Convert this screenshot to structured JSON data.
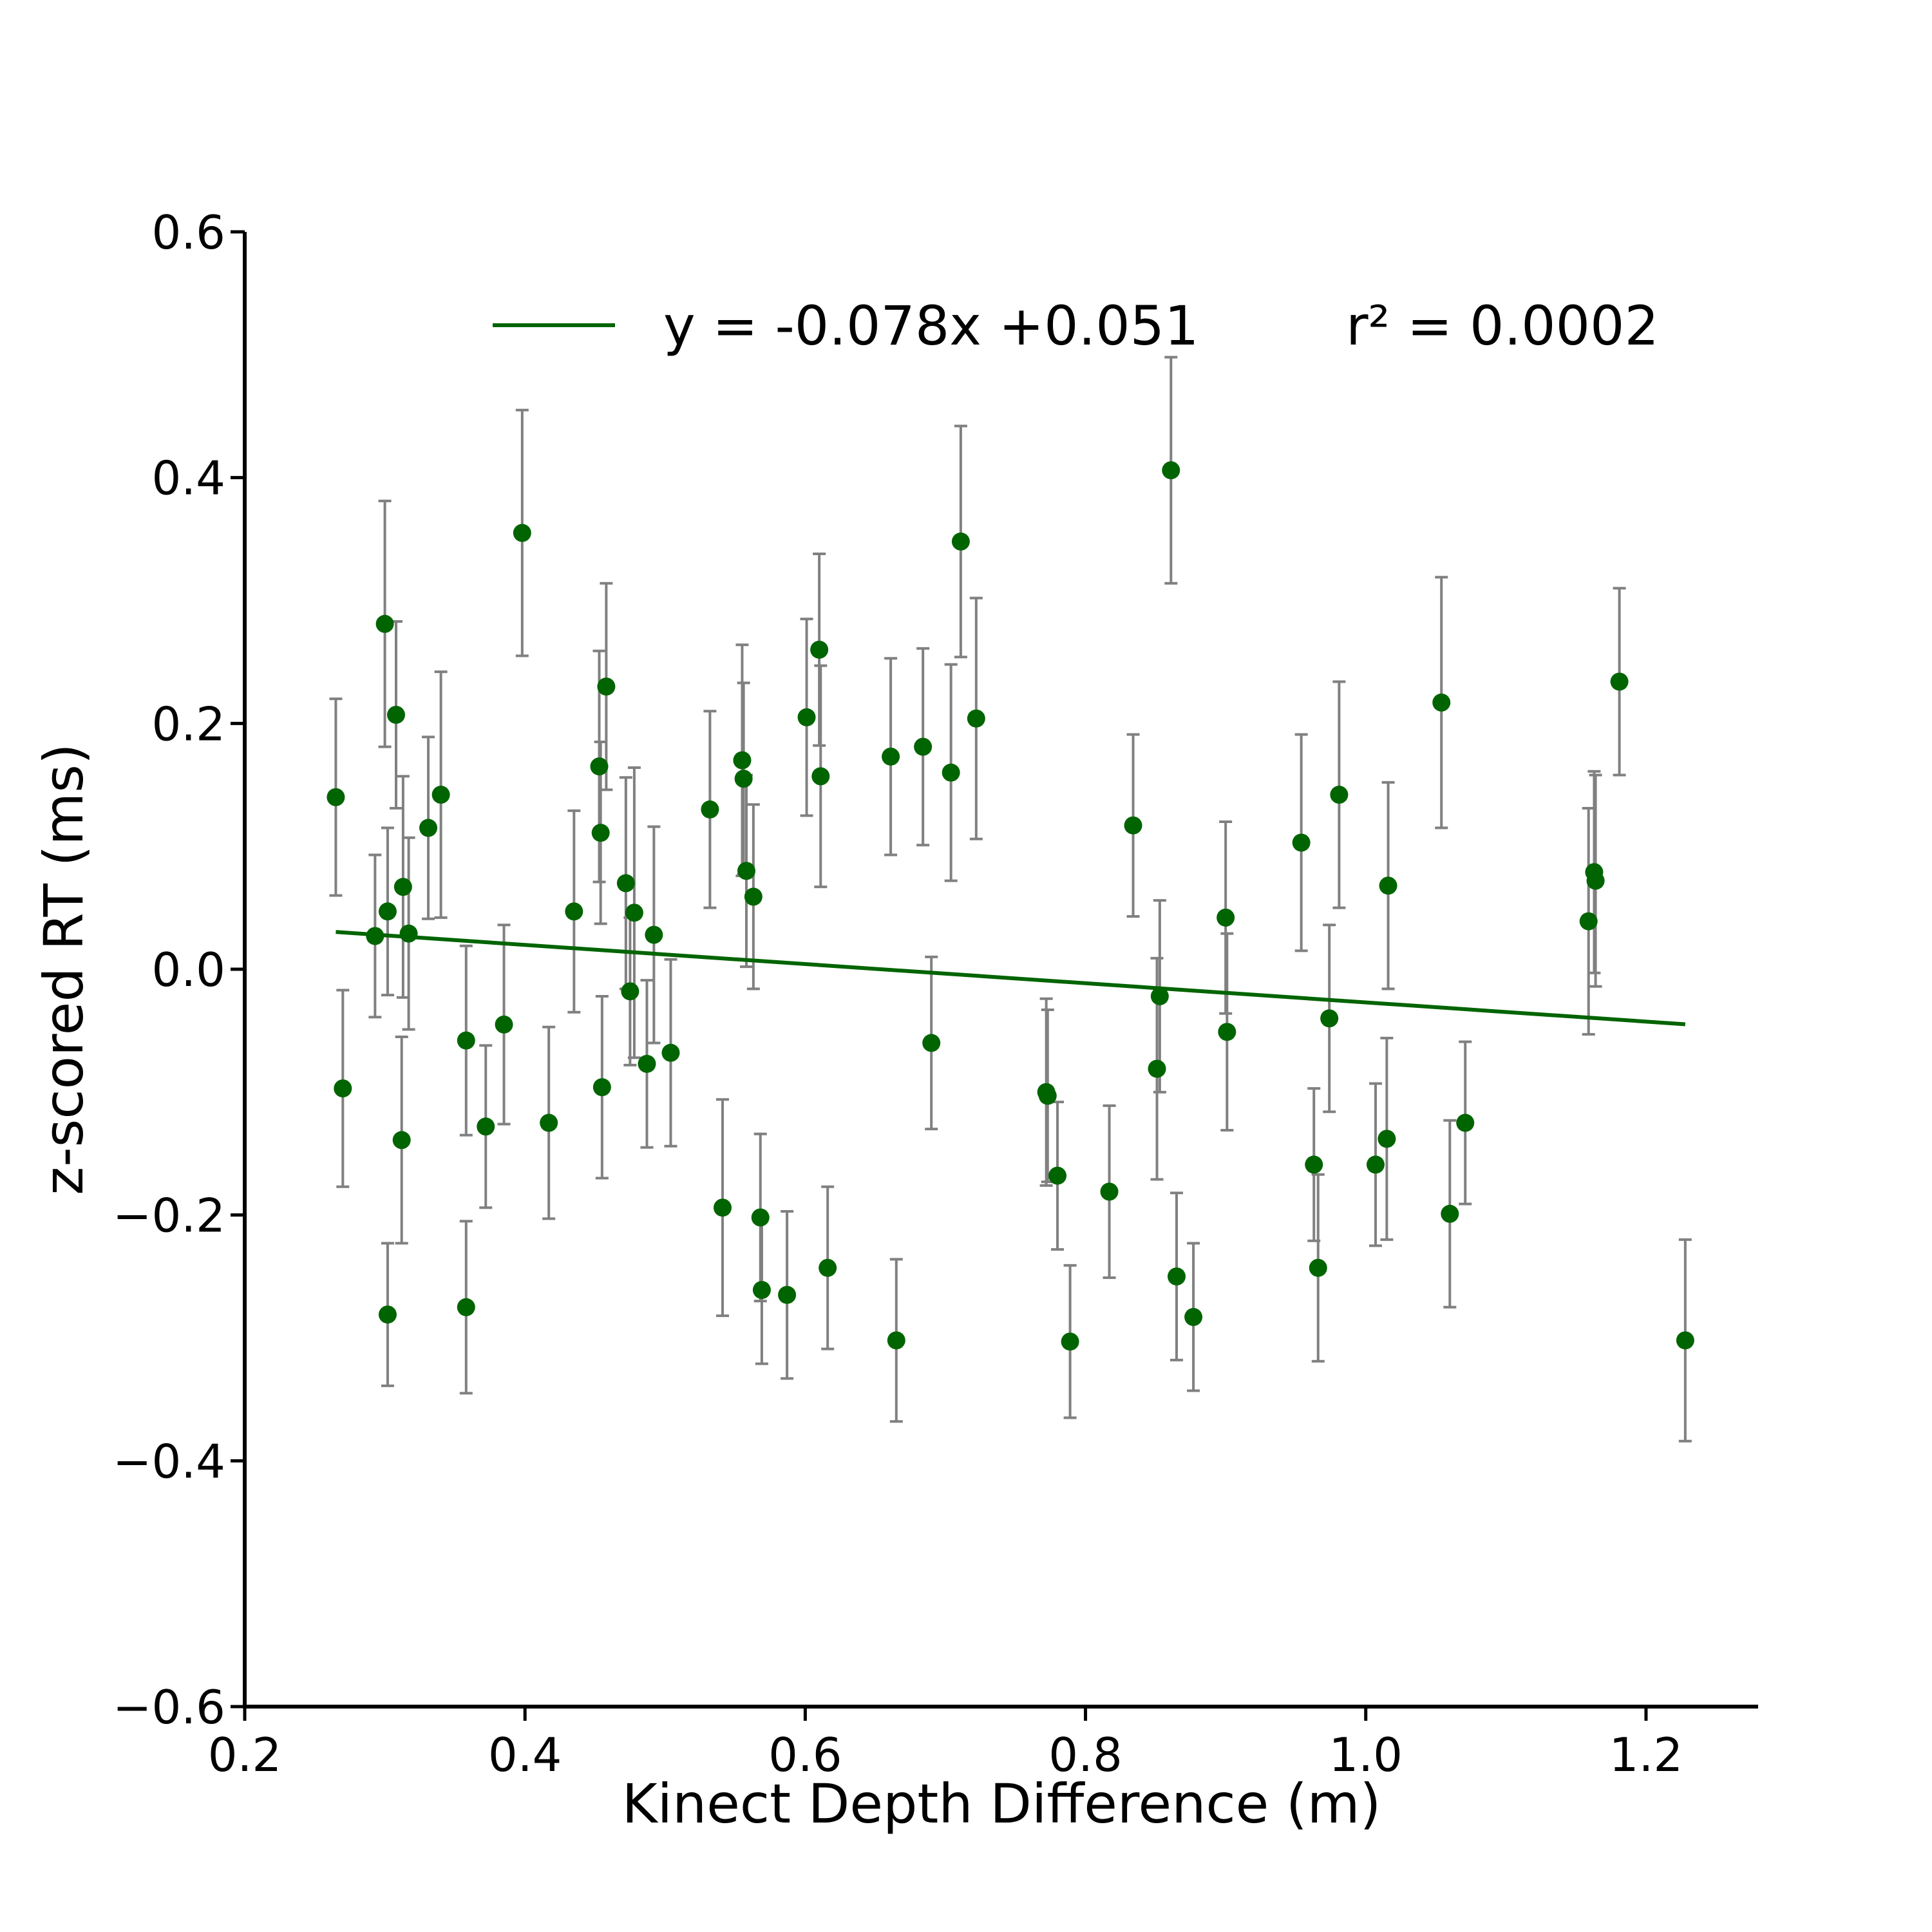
{
  "chart_data": {
    "type": "scatter",
    "title": "",
    "xlabel": "Kinect Depth Difference (m)",
    "ylabel": "z-scored RT (ms)",
    "xlim": [
      0.2,
      1.28
    ],
    "ylim": [
      -0.6,
      0.6
    ],
    "xticks": [
      "0.2",
      "0.4",
      "0.6",
      "0.8",
      "1.0",
      "1.2"
    ],
    "yticks": [
      "−0.6",
      "−0.4",
      "−0.2",
      "0.0",
      "0.2",
      "0.4",
      "0.6"
    ],
    "grid": false,
    "legend_position": "top",
    "legend": {
      "label": "y = -0.078x +0.051",
      "r2_label": "r² = 0.0002"
    },
    "colors": {
      "points": "#006400",
      "fit_line": "#006400",
      "error_bars": "#808080"
    },
    "fit": {
      "slope": -0.078,
      "intercept": 0.051,
      "x_range": [
        0.265,
        1.228
      ]
    },
    "series": [
      {
        "points": [
          {
            "x": 0.265,
            "y": 0.14,
            "err": 0.08
          },
          {
            "x": 0.27,
            "y": -0.097,
            "err": 0.08
          },
          {
            "x": 0.293,
            "y": 0.027,
            "err": 0.066
          },
          {
            "x": 0.3,
            "y": 0.281,
            "err": 0.1
          },
          {
            "x": 0.302,
            "y": 0.047,
            "err": 0.068
          },
          {
            "x": 0.302,
            "y": -0.281,
            "err": 0.058
          },
          {
            "x": 0.308,
            "y": 0.207,
            "err": 0.076
          },
          {
            "x": 0.312,
            "y": -0.139,
            "err": 0.084
          },
          {
            "x": 0.313,
            "y": 0.067,
            "err": 0.09
          },
          {
            "x": 0.317,
            "y": 0.029,
            "err": 0.078
          },
          {
            "x": 0.331,
            "y": 0.115,
            "err": 0.074
          },
          {
            "x": 0.34,
            "y": 0.142,
            "err": 0.1
          },
          {
            "x": 0.358,
            "y": -0.058,
            "err": 0.077
          },
          {
            "x": 0.358,
            "y": -0.275,
            "err": 0.07
          },
          {
            "x": 0.372,
            "y": -0.128,
            "err": 0.066
          },
          {
            "x": 0.385,
            "y": -0.045,
            "err": 0.081
          },
          {
            "x": 0.398,
            "y": 0.355,
            "err": 0.1
          },
          {
            "x": 0.417,
            "y": -0.125,
            "err": 0.078
          },
          {
            "x": 0.435,
            "y": 0.047,
            "err": 0.082
          },
          {
            "x": 0.453,
            "y": 0.165,
            "err": 0.094
          },
          {
            "x": 0.454,
            "y": 0.111,
            "err": 0.074
          },
          {
            "x": 0.455,
            "y": -0.096,
            "err": 0.074
          },
          {
            "x": 0.458,
            "y": 0.23,
            "err": 0.084
          },
          {
            "x": 0.472,
            "y": 0.07,
            "err": 0.086
          },
          {
            "x": 0.475,
            "y": -0.018,
            "err": 0.06
          },
          {
            "x": 0.478,
            "y": 0.046,
            "err": 0.118
          },
          {
            "x": 0.487,
            "y": -0.077,
            "err": 0.068
          },
          {
            "x": 0.492,
            "y": 0.028,
            "err": 0.088
          },
          {
            "x": 0.504,
            "y": -0.068,
            "err": 0.076
          },
          {
            "x": 0.532,
            "y": 0.13,
            "err": 0.08
          },
          {
            "x": 0.541,
            "y": -0.194,
            "err": 0.088
          },
          {
            "x": 0.555,
            "y": 0.17,
            "err": 0.094
          },
          {
            "x": 0.556,
            "y": 0.155,
            "err": 0.078
          },
          {
            "x": 0.558,
            "y": 0.08,
            "err": 0.078
          },
          {
            "x": 0.563,
            "y": 0.059,
            "err": 0.075
          },
          {
            "x": 0.568,
            "y": -0.202,
            "err": 0.068
          },
          {
            "x": 0.569,
            "y": -0.261,
            "err": 0.06
          },
          {
            "x": 0.587,
            "y": -0.265,
            "err": 0.068
          },
          {
            "x": 0.601,
            "y": 0.205,
            "err": 0.08
          },
          {
            "x": 0.61,
            "y": 0.26,
            "err": 0.078
          },
          {
            "x": 0.611,
            "y": 0.157,
            "err": 0.09
          },
          {
            "x": 0.616,
            "y": -0.243,
            "err": 0.066
          },
          {
            "x": 0.661,
            "y": 0.173,
            "err": 0.08
          },
          {
            "x": 0.665,
            "y": -0.302,
            "err": 0.066
          },
          {
            "x": 0.684,
            "y": 0.181,
            "err": 0.08
          },
          {
            "x": 0.69,
            "y": -0.06,
            "err": 0.07
          },
          {
            "x": 0.704,
            "y": 0.16,
            "err": 0.088
          },
          {
            "x": 0.711,
            "y": 0.348,
            "err": 0.094
          },
          {
            "x": 0.722,
            "y": 0.204,
            "err": 0.098
          },
          {
            "x": 0.772,
            "y": -0.1,
            "err": 0.076
          },
          {
            "x": 0.773,
            "y": -0.103,
            "err": 0.07
          },
          {
            "x": 0.78,
            "y": -0.168,
            "err": 0.06
          },
          {
            "x": 0.789,
            "y": -0.303,
            "err": 0.062
          },
          {
            "x": 0.817,
            "y": -0.181,
            "err": 0.07
          },
          {
            "x": 0.834,
            "y": 0.117,
            "err": 0.074
          },
          {
            "x": 0.851,
            "y": -0.081,
            "err": 0.09
          },
          {
            "x": 0.853,
            "y": -0.022,
            "err": 0.078
          },
          {
            "x": 0.861,
            "y": 0.406,
            "err": 0.092
          },
          {
            "x": 0.865,
            "y": -0.25,
            "err": 0.068
          },
          {
            "x": 0.877,
            "y": -0.283,
            "err": 0.06
          },
          {
            "x": 0.9,
            "y": 0.042,
            "err": 0.078
          },
          {
            "x": 0.901,
            "y": -0.051,
            "err": 0.08
          },
          {
            "x": 0.954,
            "y": 0.103,
            "err": 0.088
          },
          {
            "x": 0.963,
            "y": -0.159,
            "err": 0.062
          },
          {
            "x": 0.966,
            "y": -0.243,
            "err": 0.076
          },
          {
            "x": 0.974,
            "y": -0.04,
            "err": 0.076
          },
          {
            "x": 0.981,
            "y": 0.142,
            "err": 0.092
          },
          {
            "x": 1.007,
            "y": -0.159,
            "err": 0.066
          },
          {
            "x": 1.015,
            "y": -0.138,
            "err": 0.082
          },
          {
            "x": 1.016,
            "y": 0.068,
            "err": 0.084
          },
          {
            "x": 1.054,
            "y": 0.217,
            "err": 0.102
          },
          {
            "x": 1.06,
            "y": -0.199,
            "err": 0.076
          },
          {
            "x": 1.071,
            "y": -0.125,
            "err": 0.066
          },
          {
            "x": 1.159,
            "y": 0.039,
            "err": 0.092
          },
          {
            "x": 1.163,
            "y": 0.079,
            "err": 0.082
          },
          {
            "x": 1.164,
            "y": 0.072,
            "err": 0.086
          },
          {
            "x": 1.181,
            "y": 0.234,
            "err": 0.076
          },
          {
            "x": 1.228,
            "y": -0.302,
            "err": 0.082
          }
        ]
      }
    ]
  }
}
